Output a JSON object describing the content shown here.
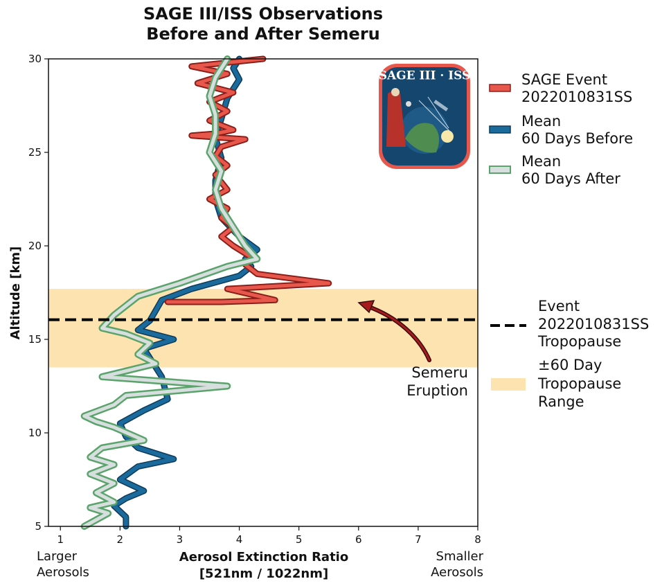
{
  "chart_data": {
    "type": "line",
    "title": [
      "SAGE III/ISS Observations",
      "Before and After Semeru"
    ],
    "xlabel": [
      "Aerosol Extinction Ratio",
      "[521nm / 1022nm]"
    ],
    "ylabel": "Altitude [km]",
    "xlim": [
      0.8,
      8
    ],
    "ylim": [
      5,
      30
    ],
    "xticks": [
      1,
      2,
      3,
      4,
      5,
      6,
      7,
      8
    ],
    "yticks": [
      5,
      10,
      15,
      20,
      25,
      30
    ],
    "x_side_labels": {
      "left": [
        "Larger",
        "Aerosols"
      ],
      "right": [
        "Smaller",
        "Aerosols"
      ]
    },
    "series": [
      {
        "name": [
          "SAGE Event",
          "2022010831SS"
        ],
        "color": "#e8574c",
        "points": [
          [
            4.4,
            30.0
          ],
          [
            3.2,
            29.6
          ],
          [
            3.8,
            29.2
          ],
          [
            3.3,
            28.7
          ],
          [
            3.9,
            28.2
          ],
          [
            3.5,
            27.7
          ],
          [
            3.8,
            27.2
          ],
          [
            3.5,
            26.7
          ],
          [
            3.9,
            26.2
          ],
          [
            3.6,
            26.0
          ],
          [
            3.2,
            25.9
          ],
          [
            4.1,
            25.7
          ],
          [
            3.7,
            25.3
          ],
          [
            3.6,
            24.8
          ],
          [
            3.8,
            24.3
          ],
          [
            3.6,
            23.8
          ],
          [
            3.7,
            23.4
          ],
          [
            3.8,
            23.0
          ],
          [
            3.5,
            22.5
          ],
          [
            3.8,
            22.0
          ],
          [
            3.7,
            21.5
          ],
          [
            3.9,
            21.0
          ],
          [
            3.7,
            20.5
          ],
          [
            3.9,
            20.0
          ],
          [
            4.2,
            19.4
          ],
          [
            4.1,
            19.0
          ],
          [
            4.3,
            18.5
          ],
          [
            5.5,
            18.0
          ],
          [
            3.8,
            17.7
          ],
          [
            4.6,
            17.1
          ],
          [
            3.7,
            17.0
          ],
          [
            2.8,
            17.0
          ]
        ]
      },
      {
        "name": [
          "Mean",
          "60 Days Before"
        ],
        "color": "#1b6a9c",
        "points": [
          [
            4.0,
            30.0
          ],
          [
            3.9,
            29.5
          ],
          [
            4.0,
            28.9
          ],
          [
            3.8,
            27.9
          ],
          [
            3.7,
            26.8
          ],
          [
            3.6,
            25.8
          ],
          [
            3.7,
            24.7
          ],
          [
            3.6,
            23.5
          ],
          [
            3.6,
            22.5
          ],
          [
            3.7,
            21.5
          ],
          [
            4.0,
            20.5
          ],
          [
            4.3,
            19.8
          ],
          [
            4.1,
            19.3
          ],
          [
            4.2,
            18.9
          ],
          [
            4.0,
            18.4
          ],
          [
            3.2,
            17.7
          ],
          [
            2.7,
            17.1
          ],
          [
            2.5,
            16.0
          ],
          [
            2.3,
            15.5
          ],
          [
            2.9,
            15.0
          ],
          [
            2.4,
            14.5
          ],
          [
            2.7,
            13.0
          ],
          [
            2.8,
            11.8
          ],
          [
            2.4,
            11.2
          ],
          [
            2.0,
            10.5
          ],
          [
            2.1,
            9.8
          ],
          [
            2.3,
            9.2
          ],
          [
            2.9,
            8.6
          ],
          [
            2.3,
            8.2
          ],
          [
            2.0,
            7.5
          ],
          [
            2.4,
            6.9
          ],
          [
            2.1,
            6.5
          ],
          [
            1.9,
            6.1
          ],
          [
            2.1,
            5.5
          ],
          [
            2.1,
            5.0
          ]
        ]
      },
      {
        "name": [
          "Mean",
          "60 Days After"
        ],
        "color": "#5aa36a",
        "points": [
          [
            3.8,
            30.0
          ],
          [
            3.6,
            29.0
          ],
          [
            3.5,
            28.0
          ],
          [
            3.6,
            27.0
          ],
          [
            3.6,
            26.0
          ],
          [
            3.5,
            25.0
          ],
          [
            3.7,
            24.0
          ],
          [
            3.6,
            23.0
          ],
          [
            3.7,
            22.0
          ],
          [
            3.9,
            21.0
          ],
          [
            4.1,
            20.0
          ],
          [
            4.3,
            19.3
          ],
          [
            3.8,
            18.9
          ],
          [
            3.0,
            18.0
          ],
          [
            2.3,
            17.3
          ],
          [
            1.9,
            16.3
          ],
          [
            1.7,
            15.6
          ],
          [
            2.1,
            15.3
          ],
          [
            2.5,
            14.8
          ],
          [
            2.3,
            14.2
          ],
          [
            2.6,
            13.7
          ],
          [
            1.7,
            13.0
          ],
          [
            3.8,
            12.5
          ],
          [
            2.1,
            12.0
          ],
          [
            1.9,
            11.5
          ],
          [
            1.4,
            10.9
          ],
          [
            1.6,
            10.6
          ],
          [
            1.9,
            10.3
          ],
          [
            2.4,
            9.6
          ],
          [
            1.7,
            9.2
          ],
          [
            1.5,
            8.7
          ],
          [
            1.9,
            8.3
          ],
          [
            1.5,
            7.8
          ],
          [
            1.9,
            7.3
          ],
          [
            1.6,
            6.8
          ],
          [
            1.9,
            6.3
          ],
          [
            1.5,
            6.0
          ],
          [
            1.8,
            5.7
          ],
          [
            1.4,
            5.0
          ]
        ]
      }
    ],
    "tropopause_event": {
      "altitude": 16.05,
      "label": [
        "Event",
        "2022010831SS",
        "Tropopause"
      ]
    },
    "tropopause_range": {
      "low": 13.5,
      "high": 17.7,
      "color": "#fde3b0",
      "label": [
        "±60 Day",
        "Tropopause",
        "Range"
      ]
    },
    "annotation": {
      "text": [
        "Semeru",
        "Eruption"
      ],
      "arrow_color": "#8b1a1a"
    },
    "grid": false,
    "legend_placement": "outside-right"
  },
  "badge": {
    "title": "SAGE III · ISS",
    "colors": {
      "ring": "#e8574c",
      "field": "#14466e",
      "earth": "#4f8c4f"
    }
  }
}
